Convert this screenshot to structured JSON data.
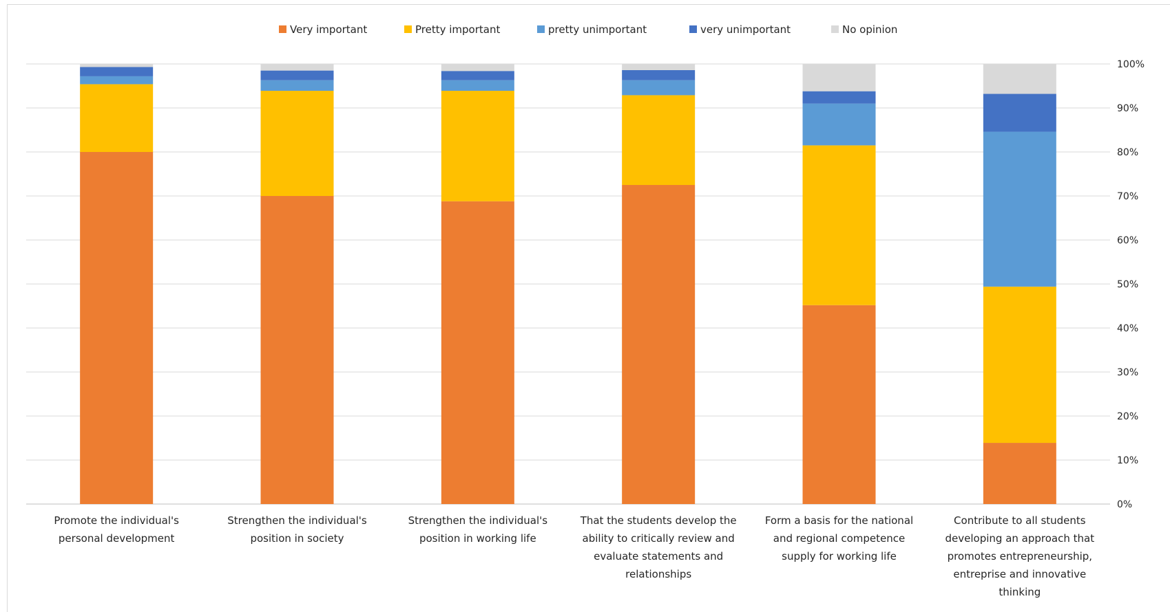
{
  "chart_data": {
    "type": "bar",
    "stacked": true,
    "normalized": true,
    "title": "",
    "xlabel": "",
    "ylabel": "",
    "ylim": [
      0,
      100
    ],
    "y_ticks": [
      "0%",
      "10%",
      "20%",
      "30%",
      "40%",
      "50%",
      "60%",
      "70%",
      "80%",
      "90%",
      "100%"
    ],
    "y_axis_position": "right",
    "grid": true,
    "legend": "top",
    "categories": [
      [
        "Promote the individual's",
        "personal development"
      ],
      [
        "Strengthen the individual's",
        "position in society"
      ],
      [
        "Strengthen the individual's",
        "position in working life"
      ],
      [
        "That the students develop the",
        "ability to critically review and",
        "evaluate statements and",
        "relationships"
      ],
      [
        "Form a basis for the national",
        "and regional competence",
        "supply for working life"
      ],
      [
        "Contribute to all students",
        "developing an approach that",
        "promotes entrepreneurship,",
        "entreprise and innovative",
        "thinking"
      ]
    ],
    "series": [
      {
        "name": "Very important",
        "color": "#ED7D31",
        "values": [
          80,
          70,
          68.8,
          72.5,
          45.2,
          13.9
        ]
      },
      {
        "name": "Pretty important",
        "color": "#FFC000",
        "values": [
          15.4,
          23.9,
          25.1,
          20.4,
          36.3,
          35.5
        ]
      },
      {
        "name": "pretty unimportant",
        "color": "#5B9BD5",
        "values": [
          1.8,
          2.4,
          2.4,
          3.4,
          9.5,
          35.2
        ]
      },
      {
        "name": "very unimportant",
        "color": "#4472C4",
        "values": [
          2.1,
          2.2,
          2.1,
          2.3,
          2.8,
          8.6
        ]
      },
      {
        "name": "No opinion",
        "color": "#D9D9D9",
        "values": [
          0.7,
          1.5,
          1.6,
          1.4,
          6.2,
          6.8
        ]
      }
    ]
  }
}
